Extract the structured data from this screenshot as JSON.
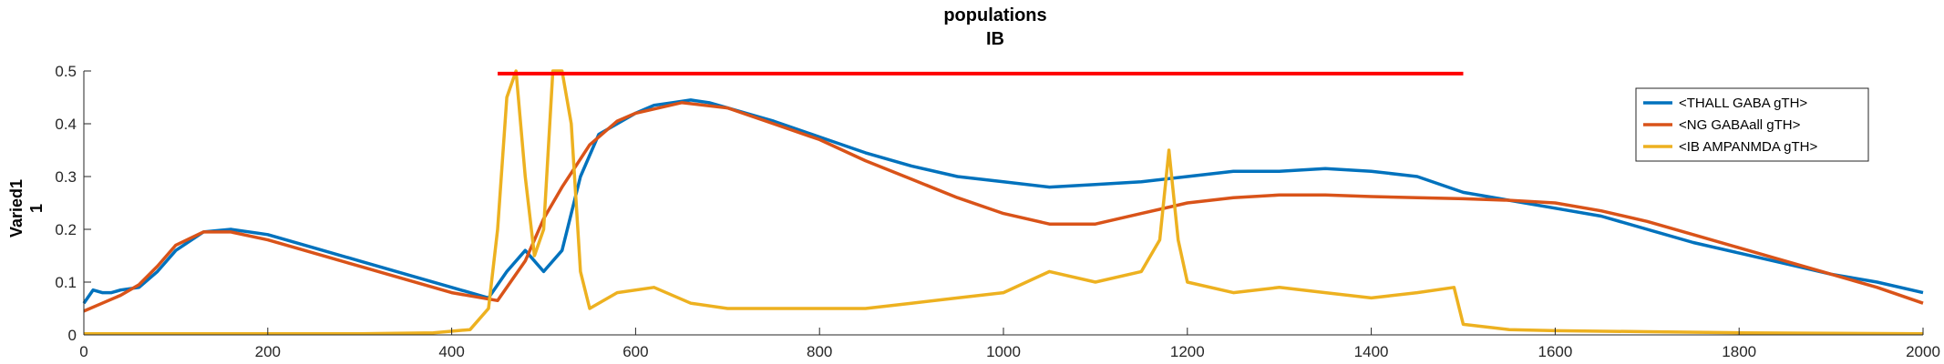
{
  "chart_data": {
    "type": "line",
    "title": "populations",
    "subtitle": "IB",
    "ylabel": "Varied1",
    "ylabel2": "1",
    "xlabel": "",
    "xlim": [
      0,
      2000
    ],
    "ylim": [
      0,
      0.5
    ],
    "xticks": [
      0,
      200,
      400,
      600,
      800,
      1000,
      1200,
      1400,
      1600,
      1800,
      2000
    ],
    "yticks": [
      0,
      0.1,
      0.2,
      0.3,
      0.4,
      0.5
    ],
    "xtick_labels": [
      "0",
      "200",
      "400",
      "600",
      "800",
      "1000",
      "1200",
      "1400",
      "1600",
      "1800",
      "2000"
    ],
    "ytick_labels": [
      "0",
      "0.1",
      "0.2",
      "0.3",
      "0.4",
      "0.5"
    ],
    "grid": false,
    "legend_position": "top-right",
    "stimulus_bar": {
      "x": [
        450,
        1500
      ],
      "y": 0.495,
      "color": "#ff0000"
    },
    "series": [
      {
        "name": "<THALL GABA gTH>",
        "color": "#0072BD",
        "x": [
          0,
          10,
          20,
          30,
          40,
          60,
          80,
          100,
          130,
          160,
          200,
          250,
          300,
          350,
          400,
          440,
          460,
          480,
          500,
          520,
          540,
          560,
          580,
          600,
          620,
          640,
          660,
          680,
          700,
          750,
          800,
          850,
          900,
          950,
          1000,
          1050,
          1100,
          1150,
          1200,
          1250,
          1300,
          1350,
          1400,
          1450,
          1500,
          1550,
          1600,
          1650,
          1700,
          1750,
          1800,
          1850,
          1900,
          1950,
          2000
        ],
        "y": [
          0.06,
          0.085,
          0.08,
          0.08,
          0.085,
          0.09,
          0.12,
          0.16,
          0.195,
          0.2,
          0.19,
          0.165,
          0.14,
          0.115,
          0.09,
          0.07,
          0.12,
          0.16,
          0.12,
          0.16,
          0.3,
          0.38,
          0.4,
          0.42,
          0.435,
          0.44,
          0.445,
          0.44,
          0.43,
          0.405,
          0.375,
          0.345,
          0.32,
          0.3,
          0.29,
          0.28,
          0.285,
          0.29,
          0.3,
          0.31,
          0.31,
          0.315,
          0.31,
          0.3,
          0.27,
          0.255,
          0.24,
          0.225,
          0.2,
          0.175,
          0.155,
          0.135,
          0.115,
          0.1,
          0.08
        ]
      },
      {
        "name": "<NG GABAall gTH>",
        "color": "#D95319",
        "x": [
          0,
          20,
          40,
          60,
          80,
          100,
          130,
          160,
          200,
          250,
          300,
          350,
          400,
          450,
          480,
          500,
          520,
          550,
          580,
          600,
          650,
          700,
          750,
          800,
          850,
          900,
          950,
          1000,
          1050,
          1100,
          1150,
          1200,
          1250,
          1300,
          1350,
          1400,
          1450,
          1500,
          1550,
          1600,
          1650,
          1700,
          1750,
          1800,
          1850,
          1900,
          1950,
          2000
        ],
        "y": [
          0.045,
          0.06,
          0.075,
          0.095,
          0.13,
          0.17,
          0.195,
          0.195,
          0.18,
          0.155,
          0.13,
          0.105,
          0.08,
          0.065,
          0.14,
          0.22,
          0.28,
          0.36,
          0.405,
          0.42,
          0.44,
          0.43,
          0.4,
          0.37,
          0.33,
          0.295,
          0.26,
          0.23,
          0.21,
          0.21,
          0.23,
          0.25,
          0.26,
          0.265,
          0.265,
          0.262,
          0.26,
          0.258,
          0.255,
          0.25,
          0.235,
          0.215,
          0.19,
          0.165,
          0.14,
          0.115,
          0.09,
          0.06
        ]
      },
      {
        "name": "<IB AMPANMDA gTH>",
        "color": "#EDB120",
        "x": [
          0,
          100,
          200,
          300,
          380,
          420,
          440,
          450,
          460,
          470,
          480,
          490,
          500,
          510,
          520,
          530,
          540,
          550,
          580,
          620,
          660,
          700,
          750,
          800,
          850,
          900,
          950,
          1000,
          1050,
          1100,
          1150,
          1170,
          1180,
          1190,
          1200,
          1250,
          1300,
          1350,
          1400,
          1450,
          1490,
          1500,
          1550,
          1600,
          1700,
          1800,
          1900,
          2000
        ],
        "y": [
          0.002,
          0.002,
          0.002,
          0.002,
          0.004,
          0.01,
          0.05,
          0.2,
          0.45,
          0.5,
          0.3,
          0.15,
          0.2,
          0.5,
          0.5,
          0.4,
          0.12,
          0.05,
          0.08,
          0.09,
          0.06,
          0.05,
          0.05,
          0.05,
          0.05,
          0.06,
          0.07,
          0.08,
          0.12,
          0.1,
          0.12,
          0.18,
          0.35,
          0.18,
          0.1,
          0.08,
          0.09,
          0.08,
          0.07,
          0.08,
          0.09,
          0.02,
          0.01,
          0.008,
          0.006,
          0.004,
          0.003,
          0.002
        ]
      }
    ]
  }
}
